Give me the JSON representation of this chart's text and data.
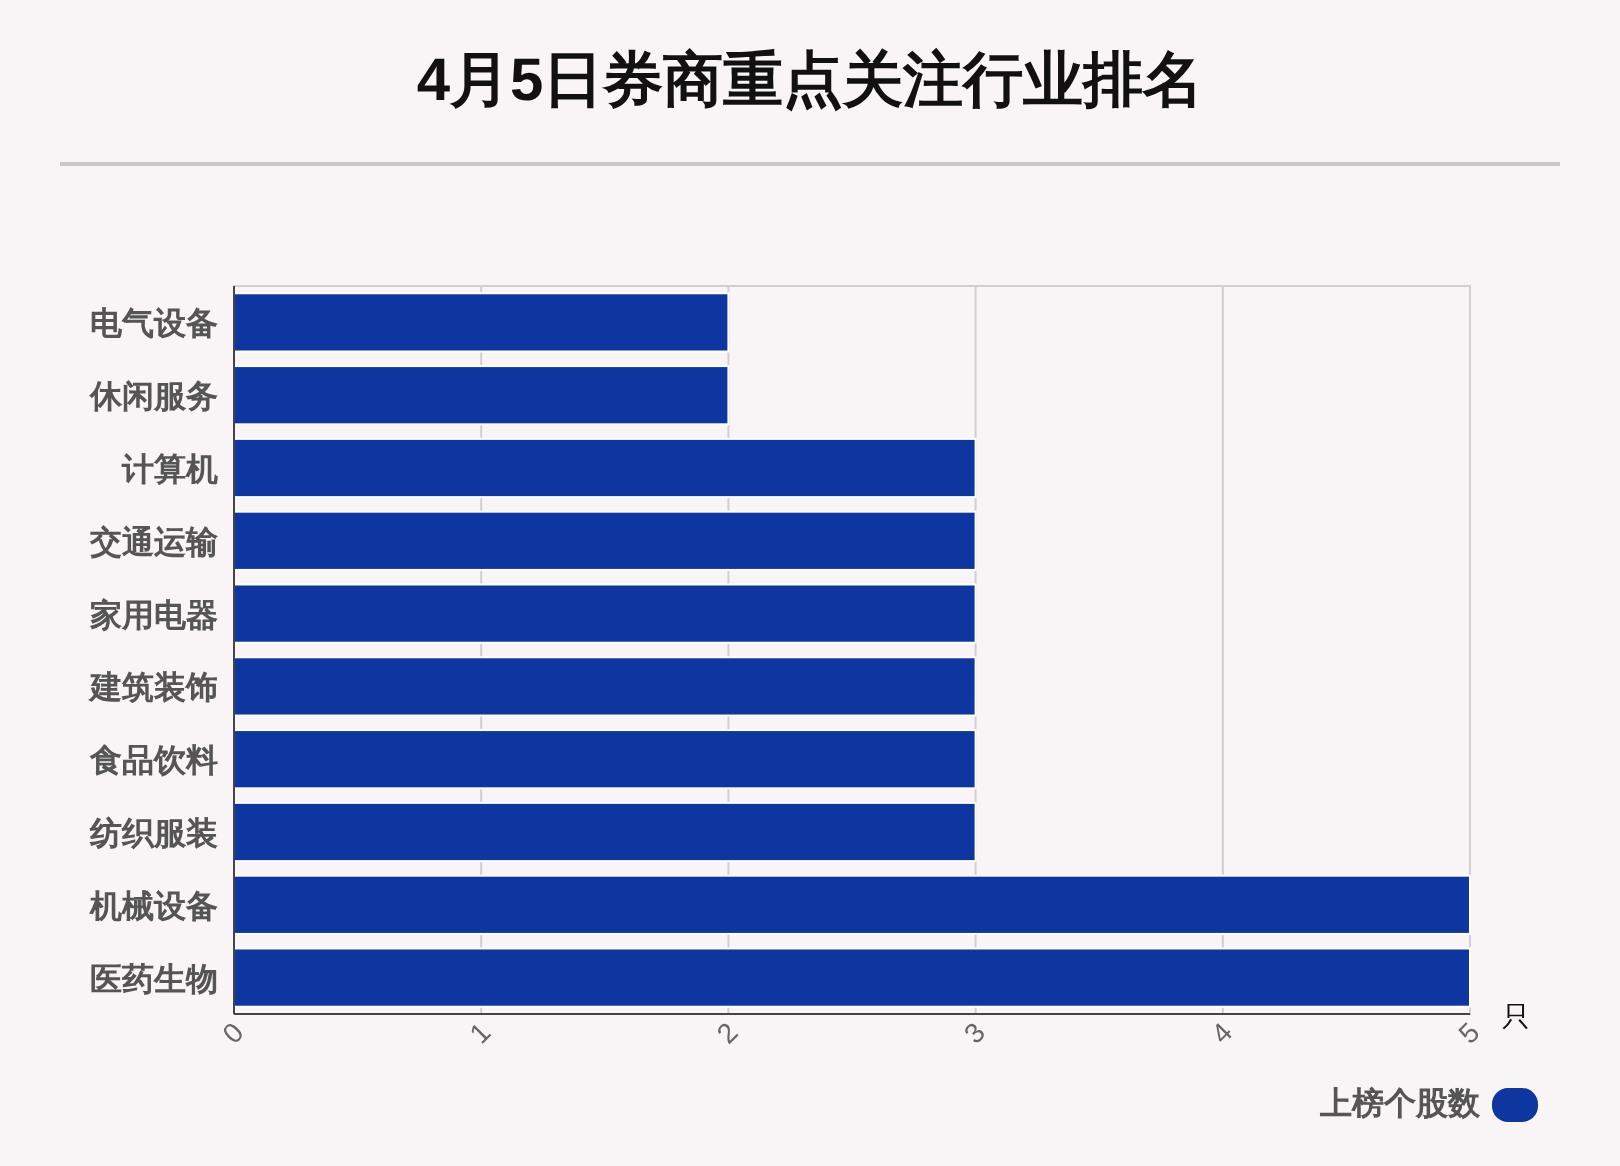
{
  "chart_data": {
    "type": "bar",
    "orientation": "horizontal",
    "title": "4月5日券商重点关注行业排名",
    "categories": [
      "电气设备",
      "休闲服务",
      "计算机",
      "交通运输",
      "家用电器",
      "建筑装饰",
      "食品饮料",
      "纺织服装",
      "机械设备",
      "医药生物"
    ],
    "series": [
      {
        "name": "上榜个股数",
        "color": "#0d36a0",
        "values": [
          2,
          2,
          3,
          3,
          3,
          3,
          3,
          3,
          5,
          5
        ]
      }
    ],
    "xlim": [
      0,
      5
    ],
    "xticks": [
      0,
      1,
      2,
      3,
      4,
      5
    ],
    "xlabel": "只",
    "grid": "x",
    "legend": "bottom right"
  }
}
